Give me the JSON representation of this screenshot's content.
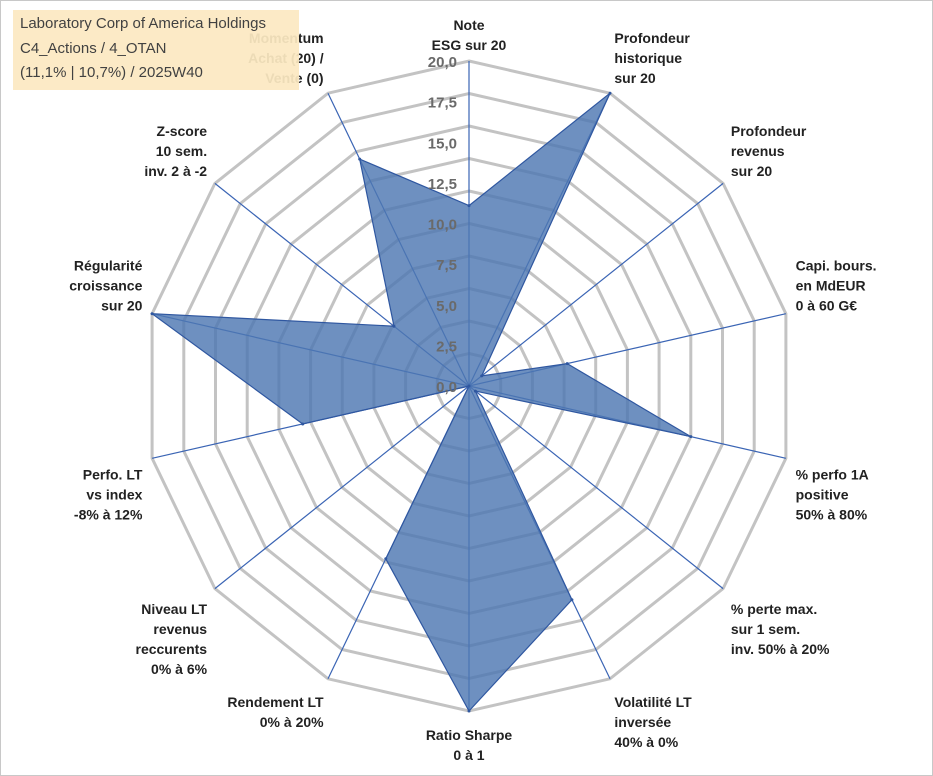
{
  "info_box": {
    "company": "Laboratory Corp of America Holdings",
    "classification": "C4_Actions / 4_OTAN",
    "stats": "(11,1% | 10,7%) / 2025W40"
  },
  "chart_data": {
    "type": "radar",
    "title": "",
    "rlim": [
      0,
      20
    ],
    "tick_labels": [
      "0,0",
      "2,5",
      "5,0",
      "7,5",
      "10,0",
      "12,5",
      "15,0",
      "17,5",
      "20,0"
    ],
    "axes": [
      [
        "Note",
        "ESG sur 20"
      ],
      [
        "Profondeur",
        "historique",
        "sur 20"
      ],
      [
        "Profondeur",
        "revenus",
        "sur 20"
      ],
      [
        "Capi. bours.",
        "en MdEUR",
        "0 à 60 G€"
      ],
      [
        "% perfo 1A",
        "positive",
        "50% à 80%"
      ],
      [
        "% perte max.",
        "sur 1 sem.",
        "inv. 50% à 20%"
      ],
      [
        "Volatilité LT",
        "inversée",
        "40% à 0%"
      ],
      [
        "Ratio Sharpe",
        "0 à 1"
      ],
      [
        "Rendement LT",
        "0% à 20%"
      ],
      [
        "Niveau LT",
        "revenus",
        "reccurents",
        "0% à 6%"
      ],
      [
        "Perfo. LT",
        "vs index",
        "-8% à 12%"
      ],
      [
        "Régularité",
        "croissance",
        "sur 20"
      ],
      [
        "Z-score",
        "10 sem.",
        "inv. 2 à -2"
      ],
      [
        "Momentum",
        "Achat (20) /",
        "Vente (0)"
      ]
    ],
    "series": [
      {
        "name": "Laboratory Corp of America Holdings",
        "color": "#4e77b2",
        "values": [
          11.1,
          20.0,
          1.0,
          6.2,
          14.0,
          0.5,
          14.6,
          20.0,
          11.8,
          0.0,
          10.5,
          20.0,
          5.9,
          15.5
        ]
      }
    ]
  }
}
